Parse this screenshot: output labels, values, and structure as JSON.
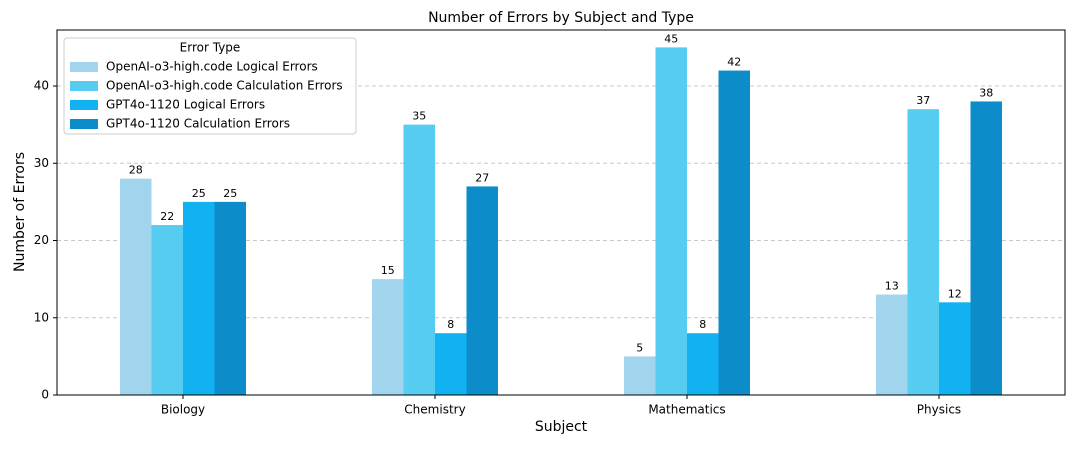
{
  "chart_data": {
    "type": "bar",
    "title": "Number of Errors by Subject and Type",
    "x_label": "Subject",
    "y_label": "Number of Errors",
    "categories": [
      "Biology",
      "Chemistry",
      "Mathematics",
      "Physics"
    ],
    "series": [
      {
        "name": "OpenAI-o3-high.code Logical Errors",
        "color": "#a1d5ee",
        "values": [
          28,
          15,
          5,
          13
        ]
      },
      {
        "name": "OpenAI-o3-high.code Calculation Errors",
        "color": "#57ccf1",
        "values": [
          22,
          35,
          45,
          37
        ]
      },
      {
        "name": "GPT4o-1120 Logical Errors",
        "color": "#12b1f1",
        "values": [
          25,
          8,
          8,
          12
        ]
      },
      {
        "name": "GPT4o-1120 Calculation Errors",
        "color": "#0c8dca",
        "values": [
          25,
          27,
          42,
          38
        ]
      }
    ],
    "legend_title": "Error Type",
    "legend": "upper left",
    "ylim": [
      0,
      47.25
    ],
    "yticks": [
      0,
      10,
      20,
      30,
      40
    ],
    "grid": true
  }
}
